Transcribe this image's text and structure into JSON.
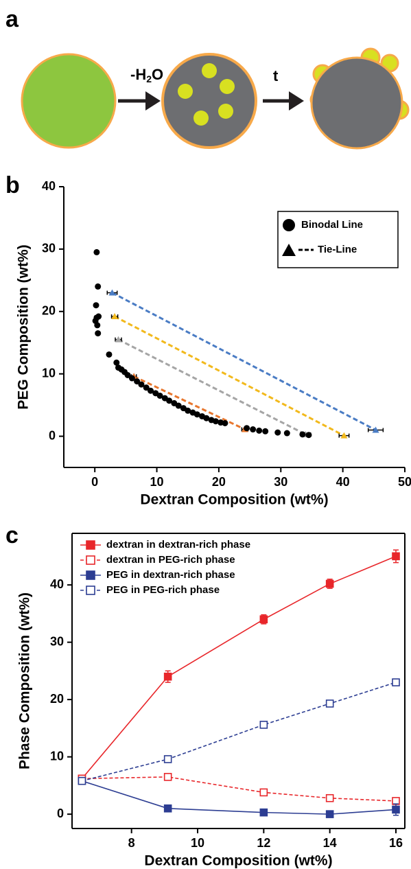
{
  "panel_labels": [
    "a",
    "b",
    "c"
  ],
  "diagram": {
    "step_1": {
      "prefix": "-H",
      "subscript": "2",
      "suffix": "O"
    },
    "step_2": "t"
  },
  "chart_data": [
    {
      "type": "scatter",
      "xlabel": "Dextran Composition (wt%)",
      "ylabel": "PEG Composition (wt%)",
      "xlim": [
        -5,
        50
      ],
      "ylim": [
        -5,
        40
      ],
      "xticks": [
        0,
        10,
        20,
        30,
        40,
        50
      ],
      "yticks": [
        0,
        10,
        20,
        30,
        40
      ],
      "frame": false,
      "legend": "upper right",
      "series": [
        {
          "name": "Binodal Line",
          "color": "#000000",
          "x": [
            0.3,
            0.5,
            0.2,
            0.3,
            0.6,
            0.1,
            0.4,
            0.5,
            2.3,
            3.5,
            3.8,
            4.3,
            4.8,
            5.3,
            6,
            6.8,
            7.5,
            8.3,
            9,
            9.8,
            10.5,
            11.3,
            12,
            12.8,
            13.5,
            14.3,
            15,
            15.8,
            16.5,
            17.3,
            18,
            18.8,
            19.5,
            20.3,
            21,
            24.5,
            25.5,
            26.5,
            27.5,
            29.5,
            31,
            33.5,
            34.5
          ],
          "values": [
            29.5,
            24,
            21,
            19,
            19.2,
            18.5,
            17.8,
            16.5,
            13.1,
            11.8,
            11,
            10.7,
            10.3,
            9.8,
            9.3,
            8.8,
            8.3,
            7.8,
            7.3,
            6.9,
            6.5,
            6.1,
            5.7,
            5.3,
            4.9,
            4.5,
            4.1,
            3.8,
            3.5,
            3.2,
            2.9,
            2.6,
            2.4,
            2.2,
            2.1,
            1.3,
            1.1,
            0.9,
            0.8,
            0.6,
            0.5,
            0.3,
            0.2
          ]
        }
      ],
      "tie_lines": {
        "name": "Tie-Line",
        "color": "#000000",
        "lines": [
          {
            "color": "#e8772e",
            "x": [
              6.3,
              24.2
            ],
            "values": [
              9.6,
              1.1
            ],
            "xerr": [
              0.4,
              0.5
            ]
          },
          {
            "color": "#a5a5a5",
            "x": [
              3.8,
              34
            ],
            "values": [
              15.5,
              0.3
            ],
            "xerr": [
              0.5,
              0.8
            ]
          },
          {
            "color": "#f2b91c",
            "x": [
              3.2,
              40.2
            ],
            "values": [
              19.2,
              0.1
            ],
            "xerr": [
              0.5,
              0.8
            ]
          },
          {
            "color": "#4a7cc4",
            "x": [
              2.8,
              45.3
            ],
            "values": [
              23,
              1.0
            ],
            "xerr": [
              0.8,
              1.2
            ]
          }
        ]
      }
    },
    {
      "type": "line",
      "xlabel": "Dextran Composition (wt%)",
      "ylabel": "Phase Composition (wt%)",
      "xlim": [
        6.2,
        16.27
      ],
      "ylim": [
        -2.5,
        49
      ],
      "xticks": [
        8,
        10,
        12,
        14,
        16
      ],
      "yticks": [
        0,
        10,
        20,
        30,
        40
      ],
      "frame": true,
      "legend": "upper left",
      "x": [
        6.5,
        9.1,
        12,
        14,
        16
      ],
      "series": [
        {
          "name": "dextran in dextran-rich phase",
          "color": "#e8262a",
          "dashed": false,
          "filled": true,
          "values": [
            6.2,
            24,
            34,
            40.2,
            45
          ],
          "errors": [
            0.3,
            1,
            0.8,
            0.8,
            1.1
          ]
        },
        {
          "name": "dextran in PEG-rich phase",
          "color": "#e8262a",
          "dashed": true,
          "filled": false,
          "values": [
            6.2,
            6.5,
            3.8,
            2.8,
            2.3
          ],
          "errors": [
            0.3,
            0.4,
            0.3,
            0.3,
            0.4
          ]
        },
        {
          "name": "PEG in dextran-rich phase",
          "color": "#2c3d92",
          "dashed": false,
          "filled": true,
          "values": [
            5.8,
            1.0,
            0.3,
            0,
            0.8
          ],
          "errors": [
            0.3,
            0.4,
            0.3,
            0.3,
            1.0
          ]
        },
        {
          "name": "PEG in PEG-rich phase",
          "color": "#2c3d92",
          "dashed": true,
          "filled": false,
          "values": [
            5.8,
            9.6,
            15.6,
            19.3,
            23
          ],
          "errors": [
            0.2,
            0.3,
            0.3,
            0.3,
            0.3
          ]
        }
      ]
    }
  ]
}
